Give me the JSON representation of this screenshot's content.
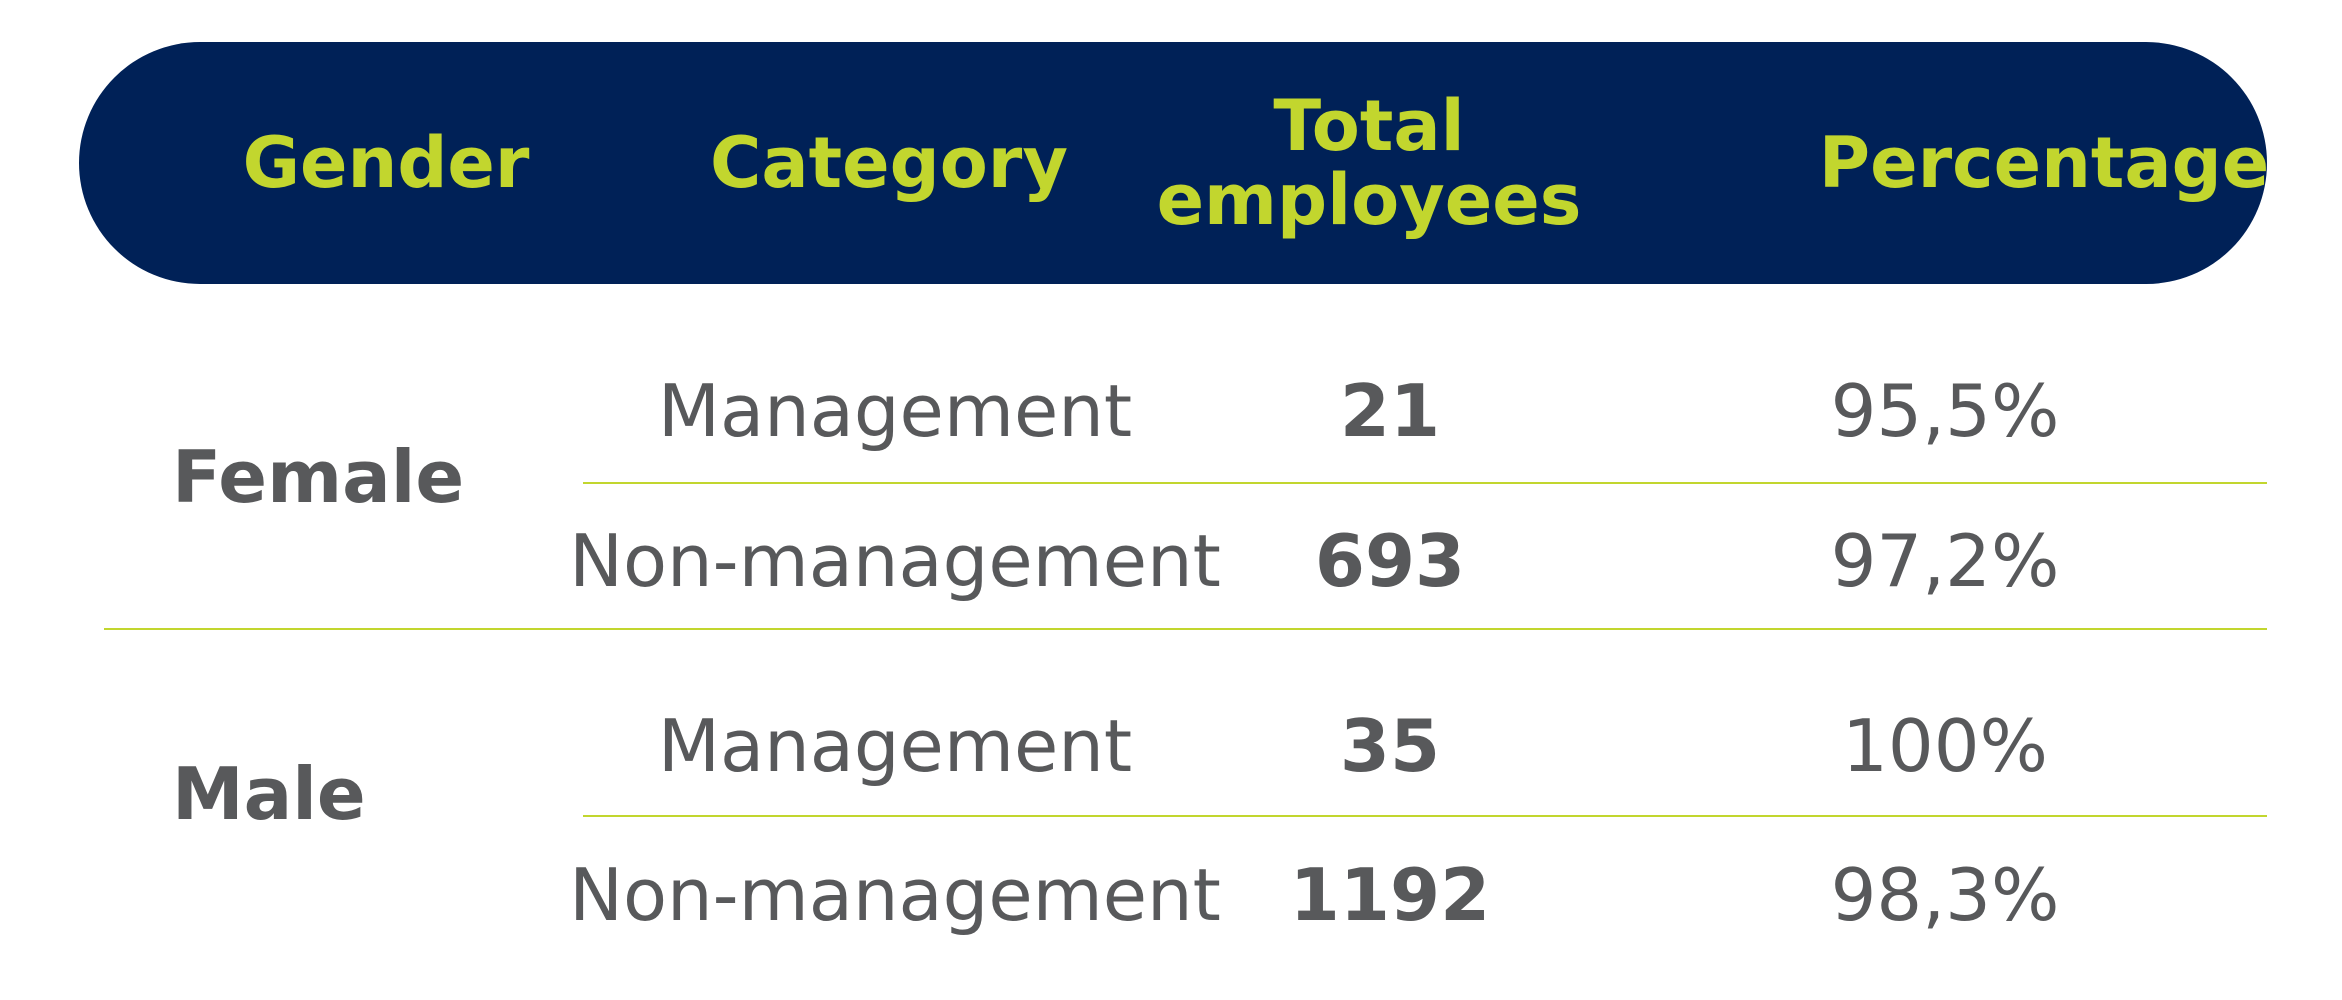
{
  "header": {
    "gender": "Gender",
    "category": "Category",
    "total_employees": "Total\nemployees",
    "percentage": "Percentage"
  },
  "groups": [
    {
      "gender": "Female",
      "rows": [
        {
          "category": "Management",
          "total": "21",
          "percentage": "95,5%"
        },
        {
          "category": "Non-management",
          "total": "693",
          "percentage": "97,2%"
        }
      ]
    },
    {
      "gender": "Male",
      "rows": [
        {
          "category": "Management",
          "total": "35",
          "percentage": "100%"
        },
        {
          "category": "Non-management",
          "total": "1192",
          "percentage": "98,3%"
        }
      ]
    }
  ],
  "colors": {
    "header_bg": "#002157",
    "header_text": "#c2d62e",
    "body_text": "#58595b",
    "rule": "#c2d62e"
  }
}
